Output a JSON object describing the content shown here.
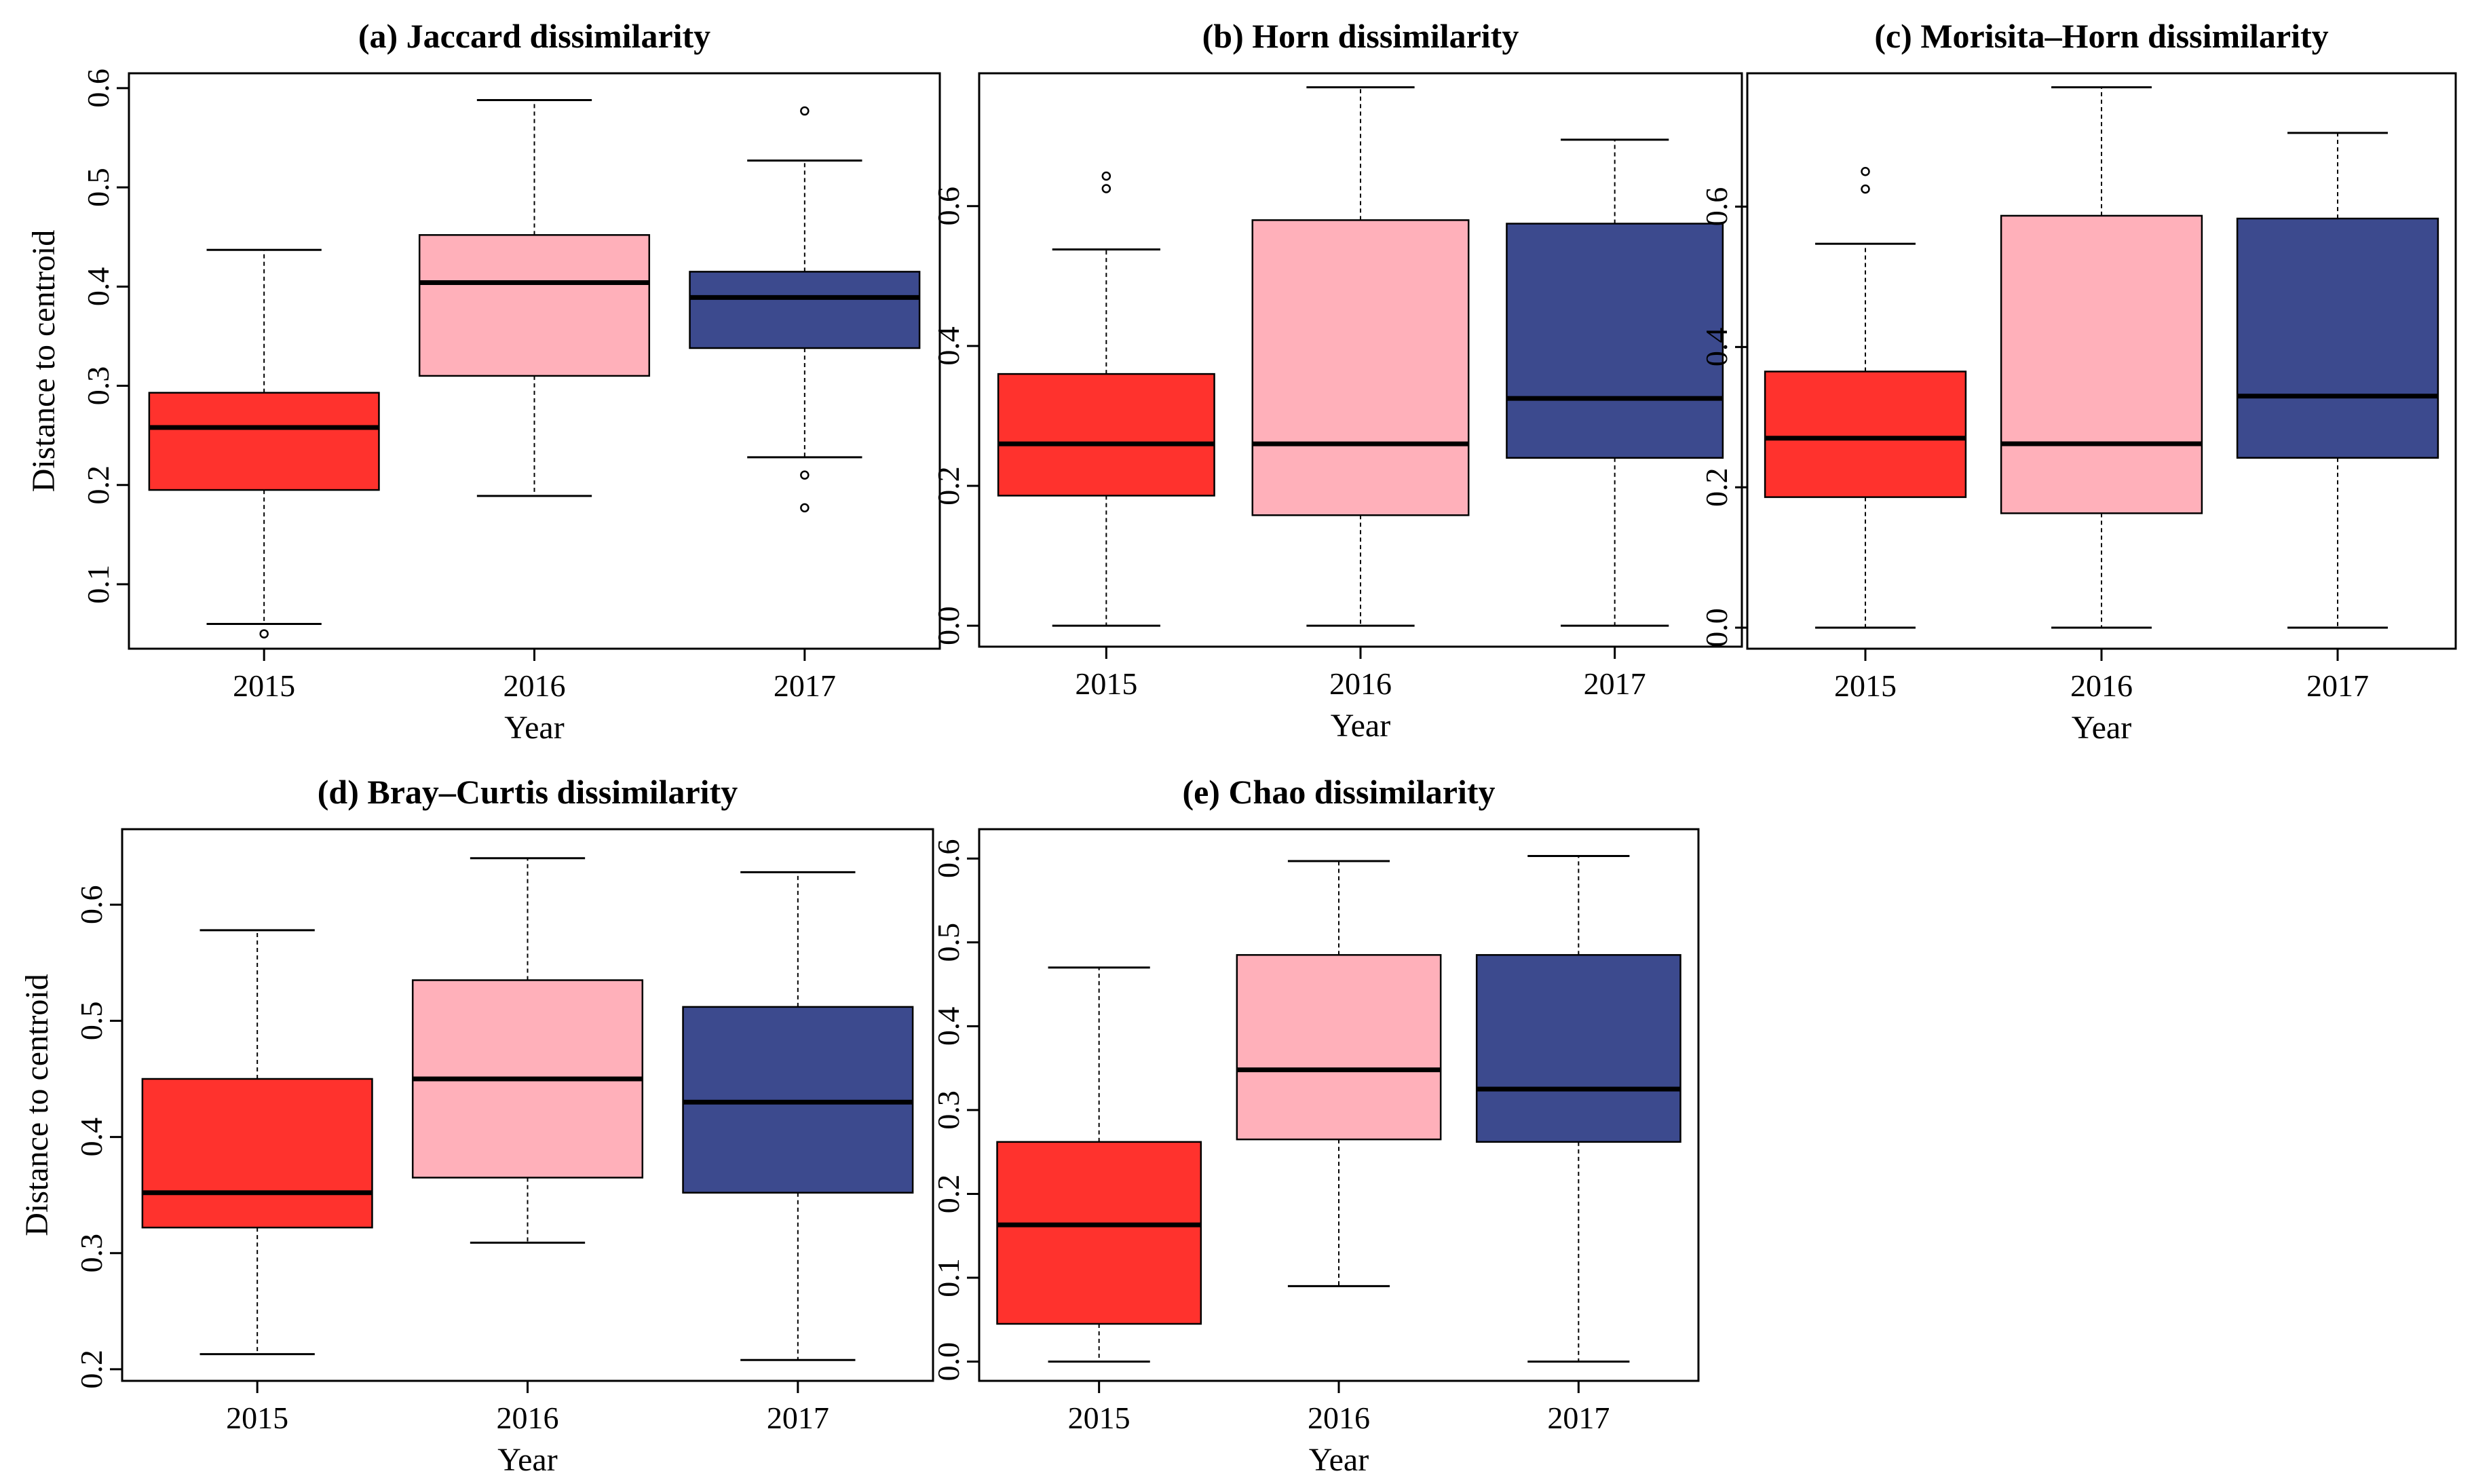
{
  "chart_data": [
    {
      "type": "box",
      "title": "(a)  Jaccard dissimilarity",
      "xlabel": "Year",
      "ylabel": "Distance to centroid",
      "ylim": [
        0.035,
        0.615
      ],
      "yticks": [
        0.1,
        0.2,
        0.3,
        0.4,
        0.5,
        0.6
      ],
      "ytick_labels": [
        "0.1",
        "0.2",
        "0.3",
        "0.4",
        "0.5",
        "0.6"
      ],
      "categories": [
        "2015",
        "2016",
        "2017"
      ],
      "colors": [
        "#ff322d",
        "#ffb0ba",
        "#3c4a8e"
      ],
      "boxes": [
        {
          "year": "2015",
          "whisker_low": 0.06,
          "q1": 0.195,
          "median": 0.258,
          "q3": 0.293,
          "whisker_high": 0.437,
          "outliers": [
            0.05
          ]
        },
        {
          "year": "2016",
          "whisker_low": 0.189,
          "q1": 0.31,
          "median": 0.404,
          "q3": 0.452,
          "whisker_high": 0.588,
          "outliers": []
        },
        {
          "year": "2017",
          "whisker_low": 0.228,
          "q1": 0.338,
          "median": 0.389,
          "q3": 0.415,
          "whisker_high": 0.527,
          "outliers": [
            0.21,
            0.177,
            0.577
          ]
        }
      ]
    },
    {
      "type": "box",
      "title": "(b)  Horn dissimilarity",
      "xlabel": "Year",
      "ylabel": "",
      "ylim": [
        -0.03,
        0.79
      ],
      "yticks": [
        0.0,
        0.2,
        0.4,
        0.6
      ],
      "ytick_labels": [
        "0.0",
        "0.2",
        "0.4",
        "0.6"
      ],
      "categories": [
        "2015",
        "2016",
        "2017"
      ],
      "colors": [
        "#ff322d",
        "#ffb0ba",
        "#3c4a8e"
      ],
      "boxes": [
        {
          "year": "2015",
          "whisker_low": 0.0,
          "q1": 0.186,
          "median": 0.26,
          "q3": 0.36,
          "whisker_high": 0.538,
          "outliers": [
            0.625,
            0.643
          ]
        },
        {
          "year": "2016",
          "whisker_low": 0.0,
          "q1": 0.158,
          "median": 0.26,
          "q3": 0.58,
          "whisker_high": 0.77,
          "outliers": []
        },
        {
          "year": "2017",
          "whisker_low": 0.0,
          "q1": 0.24,
          "median": 0.325,
          "q3": 0.575,
          "whisker_high": 0.695,
          "outliers": []
        }
      ]
    },
    {
      "type": "box",
      "title": "(c)  Morisita–Horn dissimilarity",
      "xlabel": "Year",
      "ylabel": "",
      "ylim": [
        -0.03,
        0.79
      ],
      "yticks": [
        0.0,
        0.2,
        0.4,
        0.6
      ],
      "ytick_labels": [
        "0.0",
        "0.2",
        "0.4",
        "0.6"
      ],
      "categories": [
        "2015",
        "2016",
        "2017"
      ],
      "colors": [
        "#ff322d",
        "#ffb0ba",
        "#3c4a8e"
      ],
      "boxes": [
        {
          "year": "2015",
          "whisker_low": 0.0,
          "q1": 0.186,
          "median": 0.27,
          "q3": 0.365,
          "whisker_high": 0.547,
          "outliers": [
            0.625,
            0.65
          ]
        },
        {
          "year": "2016",
          "whisker_low": 0.0,
          "q1": 0.163,
          "median": 0.262,
          "q3": 0.587,
          "whisker_high": 0.77,
          "outliers": []
        },
        {
          "year": "2017",
          "whisker_low": 0.0,
          "q1": 0.242,
          "median": 0.33,
          "q3": 0.583,
          "whisker_high": 0.705,
          "outliers": []
        }
      ]
    },
    {
      "type": "box",
      "title": "(d)  Bray–Curtis  dissimilarity",
      "xlabel": "Year",
      "ylabel": "Distance to centroid",
      "ylim": [
        0.19,
        0.665
      ],
      "yticks": [
        0.2,
        0.3,
        0.4,
        0.5,
        0.6
      ],
      "ytick_labels": [
        "0.2",
        "0.3",
        "0.4",
        "0.5",
        "0.6"
      ],
      "categories": [
        "2015",
        "2016",
        "2017"
      ],
      "colors": [
        "#ff322d",
        "#ffb0ba",
        "#3c4a8e"
      ],
      "boxes": [
        {
          "year": "2015",
          "whisker_low": 0.213,
          "q1": 0.322,
          "median": 0.352,
          "q3": 0.45,
          "whisker_high": 0.578,
          "outliers": []
        },
        {
          "year": "2016",
          "whisker_low": 0.309,
          "q1": 0.365,
          "median": 0.45,
          "q3": 0.535,
          "whisker_high": 0.64,
          "outliers": []
        },
        {
          "year": "2017",
          "whisker_low": 0.208,
          "q1": 0.352,
          "median": 0.43,
          "q3": 0.512,
          "whisker_high": 0.628,
          "outliers": []
        }
      ]
    },
    {
      "type": "box",
      "title": "(e)  Chao dissimilarity",
      "xlabel": "Year",
      "ylabel": "",
      "ylim": [
        -0.023,
        0.635
      ],
      "yticks": [
        0.0,
        0.1,
        0.2,
        0.3,
        0.4,
        0.5,
        0.6
      ],
      "ytick_labels": [
        "0.0",
        "0.1",
        "0.2",
        "0.3",
        "0.4",
        "0.5",
        "0.6"
      ],
      "categories": [
        "2015",
        "2016",
        "2017"
      ],
      "colors": [
        "#ff322d",
        "#ffb0ba",
        "#3c4a8e"
      ],
      "boxes": [
        {
          "year": "2015",
          "whisker_low": 0.0,
          "q1": 0.045,
          "median": 0.163,
          "q3": 0.262,
          "whisker_high": 0.47,
          "outliers": []
        },
        {
          "year": "2016",
          "whisker_low": 0.09,
          "q1": 0.265,
          "median": 0.348,
          "q3": 0.485,
          "whisker_high": 0.597,
          "outliers": []
        },
        {
          "year": "2017",
          "whisker_low": 0.0,
          "q1": 0.262,
          "median": 0.325,
          "q3": 0.485,
          "whisker_high": 0.603,
          "outliers": []
        }
      ]
    }
  ]
}
